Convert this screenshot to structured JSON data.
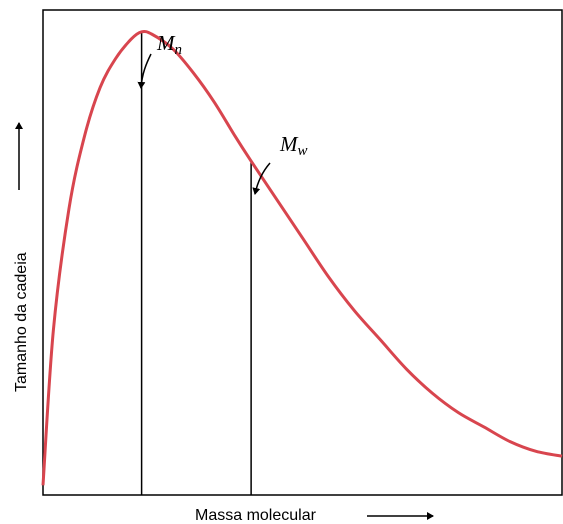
{
  "chart_data": {
    "type": "line",
    "title": "",
    "xlabel": "Massa molecular",
    "ylabel": "Tamanho da cadeia",
    "x_ticks": [],
    "y_ticks": [],
    "xlim": [
      0,
      1
    ],
    "ylim": [
      0,
      1
    ],
    "grid": false,
    "legend": "none",
    "series_color": "#d8454e",
    "series": [
      {
        "x": [
          0.0,
          0.02,
          0.05,
          0.08,
          0.11,
          0.14,
          0.17,
          0.19,
          0.21,
          0.25,
          0.29,
          0.33,
          0.37,
          0.4,
          0.45,
          0.5,
          0.55,
          0.6,
          0.65,
          0.7,
          0.75,
          0.8,
          0.85,
          0.9,
          0.95,
          1.0
        ],
        "y": [
          0.02,
          0.34,
          0.59,
          0.74,
          0.84,
          0.9,
          0.94,
          0.955,
          0.95,
          0.92,
          0.87,
          0.81,
          0.74,
          0.69,
          0.61,
          0.53,
          0.45,
          0.38,
          0.32,
          0.26,
          0.21,
          0.17,
          0.14,
          0.11,
          0.09,
          0.08
        ]
      }
    ],
    "annotations": [
      {
        "label": "M",
        "subscript": "n",
        "x": 0.19,
        "y": 0.955
      },
      {
        "label": "M",
        "subscript": "w",
        "x": 0.401,
        "y": 0.69
      }
    ]
  }
}
